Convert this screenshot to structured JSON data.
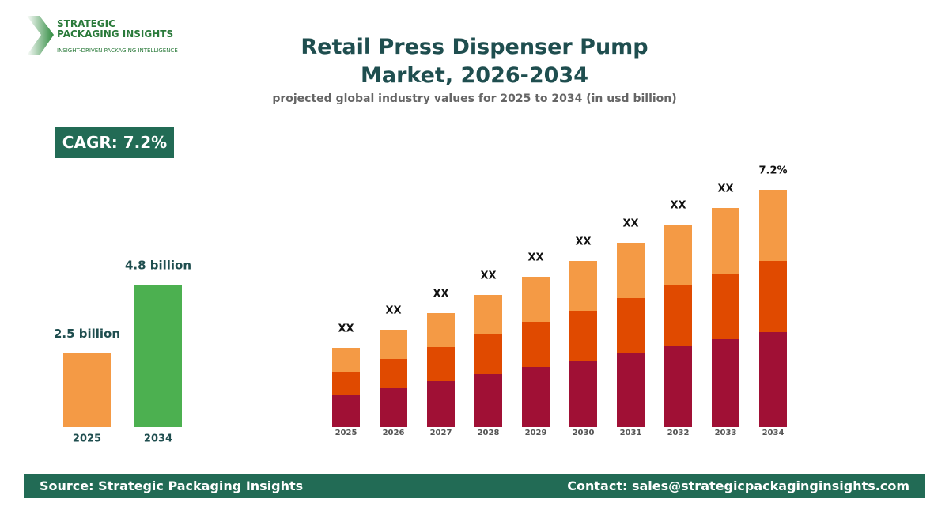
{
  "header": {
    "logo_line1": "STRATEGIC",
    "logo_line2": "PACKAGING INSIGHTS",
    "logo_tagline": "INSIGHT-DRIVEN PACKAGING INTELLIGENCE",
    "title": "Retail Press Dispenser Pump Market, 2026-2034",
    "subtitle": "projected global industry values for 2025 to 2034 (in usd billion)"
  },
  "cagr_badge": "CAGR: 7.2%",
  "chart_data": [
    {
      "type": "bar",
      "categories": [
        "2025",
        "2034"
      ],
      "values": [
        2.5,
        4.8
      ],
      "value_labels": [
        "2.5 billion",
        "4.8 billion"
      ],
      "colors": [
        "#f49a45",
        "#4cb050"
      ]
    },
    {
      "type": "stacked_bar",
      "categories": [
        "2025",
        "2026",
        "2027",
        "2028",
        "2029",
        "2030",
        "2031",
        "2032",
        "2033",
        "2034"
      ],
      "series": [
        {
          "color": "#a01035",
          "values": [
            4.0,
            4.9,
            5.8,
            6.7,
            7.6,
            8.4,
            9.3,
            10.2,
            11.1,
            12.0
          ]
        },
        {
          "color": "#e04a00",
          "values": [
            3.0,
            3.7,
            4.3,
            5.0,
            5.7,
            6.3,
            7.0,
            7.7,
            8.3,
            9.0
          ]
        },
        {
          "color": "#f49a45",
          "values": [
            3.0,
            3.7,
            4.3,
            5.0,
            5.7,
            6.3,
            7.0,
            7.7,
            8.3,
            9.0
          ]
        }
      ],
      "bar_labels": [
        "XX",
        "XX",
        "XX",
        "XX",
        "XX",
        "XX",
        "XX",
        "XX",
        "XX",
        "7.2%"
      ]
    }
  ],
  "footer": {
    "source": "Source: Strategic Packaging Insights",
    "contact": "Contact: sales@strategicpackaginginsights.com"
  }
}
